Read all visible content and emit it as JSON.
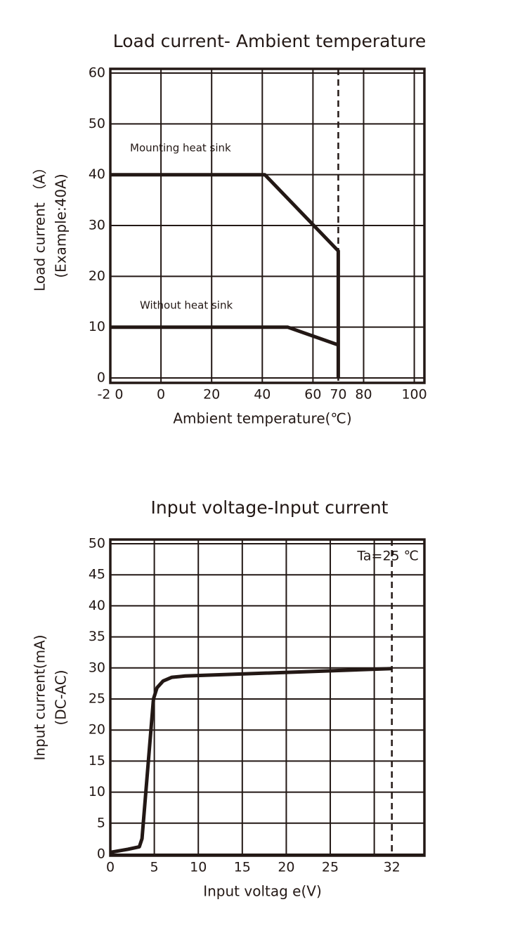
{
  "chart_data": [
    {
      "type": "line",
      "title": "Load current- Ambient temperature",
      "xlabel": "Ambient temperature(℃)",
      "ylabel": [
        "Load current （A）",
        "(Example:40A)"
      ],
      "xlim": [
        -20,
        104
      ],
      "ylim": [
        0,
        60
      ],
      "xticks": [
        {
          "value": -20,
          "label": "-2 0"
        },
        0,
        20,
        40,
        60,
        70,
        80,
        100
      ],
      "yticks": [
        0,
        10,
        20,
        30,
        40,
        50,
        60
      ],
      "xgrid": [
        0,
        20,
        40,
        60,
        80,
        100
      ],
      "dashed_x": 70,
      "grid": true,
      "annotations": [
        "Mounting heat sink",
        "Without heat sink"
      ],
      "series": [
        {
          "color": "#231815",
          "x": [
            -20,
            41,
            70,
            70
          ],
          "values": [
            40,
            40,
            25,
            0
          ]
        },
        {
          "color": "#231815",
          "x": [
            -20,
            50,
            70
          ],
          "values": [
            10,
            10,
            6.5
          ]
        }
      ]
    },
    {
      "type": "line",
      "title": "Input voltage-Input current",
      "xlabel": "Input voltag e(V)",
      "ylabel": [
        "Input current(mA)",
        "(DC-AC)"
      ],
      "xlim": [
        0,
        35.7
      ],
      "ylim": [
        0,
        50
      ],
      "xticks": [
        0,
        5,
        10,
        15,
        20,
        25,
        32
      ],
      "yticks": [
        0,
        5,
        10,
        15,
        20,
        25,
        30,
        35,
        40,
        45,
        50
      ],
      "xgrid": [
        5,
        10,
        15,
        20,
        25,
        30
      ],
      "dashed_x": 32,
      "grid": true,
      "annotations": [
        "Ta=25 ℃"
      ],
      "series": [
        {
          "color": "#231815",
          "x": [
            0,
            2,
            3.3,
            3.6,
            4.9,
            5.3,
            6,
            7,
            8.5,
            32
          ],
          "values": [
            0.3,
            0.8,
            1.2,
            2.5,
            25,
            26.8,
            27.9,
            28.5,
            28.7,
            29.9
          ]
        }
      ]
    }
  ]
}
